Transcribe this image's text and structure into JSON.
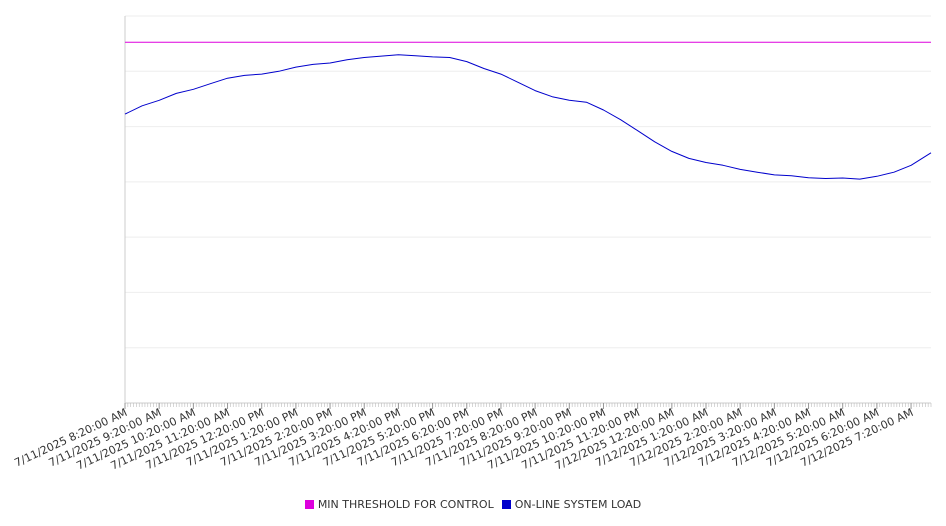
{
  "chart_data": {
    "type": "line",
    "xlabel": "",
    "ylabel": "",
    "grid": true,
    "legend_position": "bottom",
    "ylim": [
      0,
      14
    ],
    "x_ticks": [
      "7/11/2025 8:20:00 AM",
      "7/11/2025 9:20:00 AM",
      "7/11/2025 10:20:00 AM",
      "7/11/2025 11:20:00 AM",
      "7/11/2025 12:20:00 PM",
      "7/11/2025 1:20:00 PM",
      "7/11/2025 2:20:00 PM",
      "7/11/2025 3:20:00 PM",
      "7/11/2025 4:20:00 PM",
      "7/11/2025 5:20:00 PM",
      "7/11/2025 6:20:00 PM",
      "7/11/2025 7:20:00 PM",
      "7/11/2025 8:20:00 PM",
      "7/11/2025 9:20:00 PM",
      "7/11/2025 10:20:00 PM",
      "7/11/2025 11:20:00 PM",
      "7/12/2025 12:20:00 AM",
      "7/12/2025 1:20:00 AM",
      "7/12/2025 2:20:00 AM",
      "7/12/2025 3:20:00 AM",
      "7/12/2025 4:20:00 AM",
      "7/12/2025 5:20:00 AM",
      "7/12/2025 6:20:00 AM",
      "7/12/2025 7:20:00 AM"
    ],
    "series": [
      {
        "name": "MIN THRESHOLD FOR CONTROL",
        "color": "#dd00dd",
        "x": [
          "7/11/2025 8:20:00 AM",
          "7/12/2025 7:55:00 AM"
        ],
        "values": [
          13.05,
          13.05
        ]
      },
      {
        "name": "ON-LINE SYSTEM LOAD",
        "color": "#0000cc",
        "x": [
          "7/11/2025 8:20:00 AM",
          "7/11/2025 8:50:00 AM",
          "7/11/2025 9:20:00 AM",
          "7/11/2025 9:50:00 AM",
          "7/11/2025 10:20:00 AM",
          "7/11/2025 10:50:00 AM",
          "7/11/2025 11:20:00 AM",
          "7/11/2025 11:50:00 AM",
          "7/11/2025 12:20:00 PM",
          "7/11/2025 12:50:00 PM",
          "7/11/2025 1:20:00 PM",
          "7/11/2025 1:50:00 PM",
          "7/11/2025 2:20:00 PM",
          "7/11/2025 2:50:00 PM",
          "7/11/2025 3:20:00 PM",
          "7/11/2025 3:50:00 PM",
          "7/11/2025 4:20:00 PM",
          "7/11/2025 4:50:00 PM",
          "7/11/2025 5:20:00 PM",
          "7/11/2025 5:50:00 PM",
          "7/11/2025 6:20:00 PM",
          "7/11/2025 6:50:00 PM",
          "7/11/2025 7:20:00 PM",
          "7/11/2025 7:50:00 PM",
          "7/11/2025 8:20:00 PM",
          "7/11/2025 8:50:00 PM",
          "7/11/2025 9:20:00 PM",
          "7/11/2025 9:50:00 PM",
          "7/11/2025 10:20:00 PM",
          "7/11/2025 10:50:00 PM",
          "7/11/2025 11:20:00 PM",
          "7/11/2025 11:50:00 PM",
          "7/12/2025 12:20:00 AM",
          "7/12/2025 12:50:00 AM",
          "7/12/2025 1:20:00 AM",
          "7/12/2025 1:50:00 AM",
          "7/12/2025 2:20:00 AM",
          "7/12/2025 2:50:00 AM",
          "7/12/2025 3:20:00 AM",
          "7/12/2025 3:50:00 AM",
          "7/12/2025 4:20:00 AM",
          "7/12/2025 4:50:00 AM",
          "7/12/2025 5:20:00 AM",
          "7/12/2025 5:50:00 AM",
          "7/12/2025 6:20:00 AM",
          "7/12/2025 6:50:00 AM",
          "7/12/2025 7:20:00 AM",
          "7/12/2025 7:55:00 AM"
        ],
        "values": [
          10.45,
          10.75,
          10.95,
          11.2,
          11.35,
          11.55,
          11.75,
          11.85,
          11.9,
          12.0,
          12.15,
          12.25,
          12.3,
          12.42,
          12.5,
          12.55,
          12.6,
          12.56,
          12.52,
          12.5,
          12.35,
          12.1,
          11.9,
          11.6,
          11.3,
          11.08,
          10.95,
          10.88,
          10.6,
          10.25,
          9.85,
          9.45,
          9.1,
          8.85,
          8.7,
          8.6,
          8.45,
          8.35,
          8.25,
          8.22,
          8.15,
          8.12,
          8.14,
          8.1,
          8.2,
          8.35,
          8.6,
          9.05
        ]
      }
    ]
  }
}
